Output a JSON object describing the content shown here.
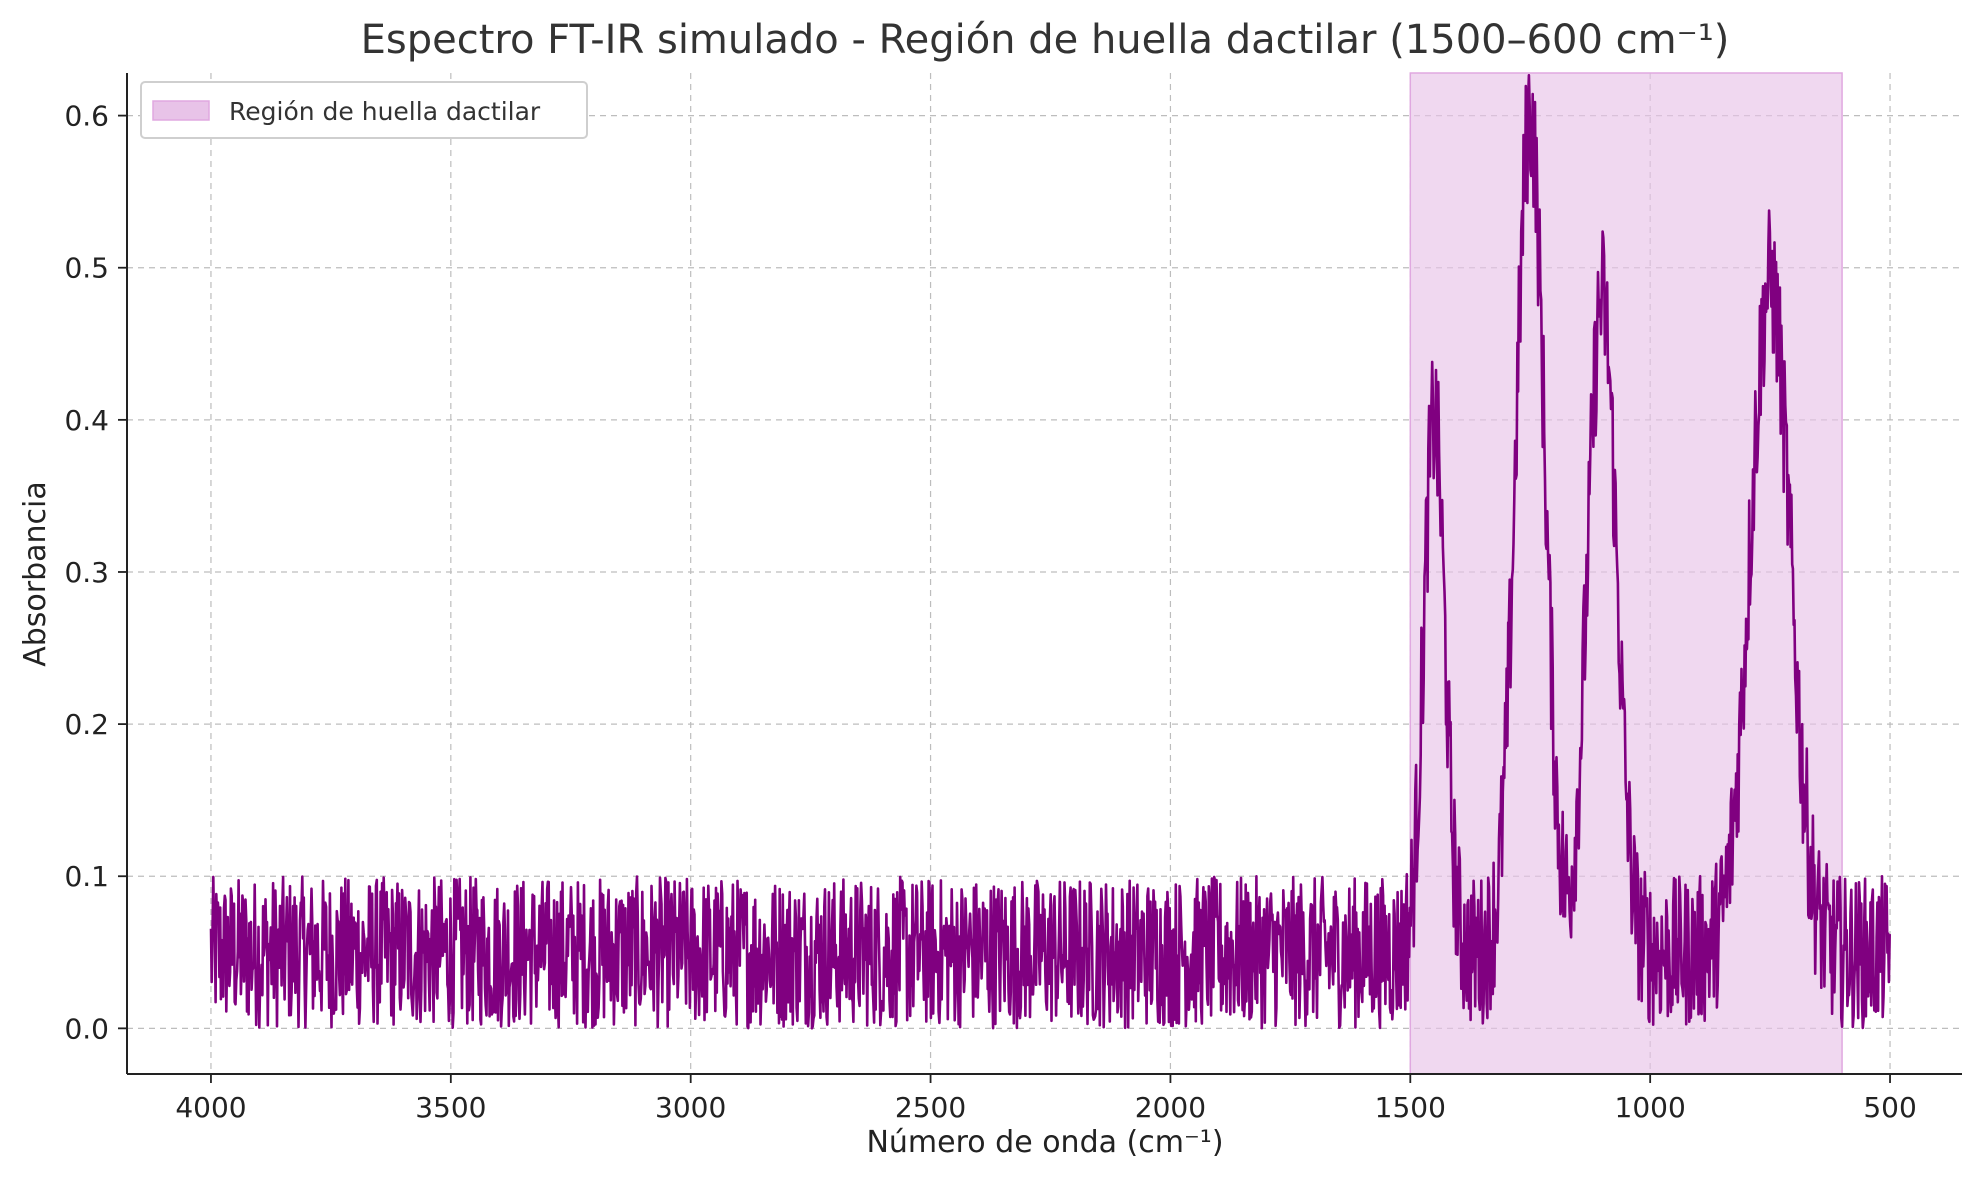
{
  "chart_data": {
    "type": "line",
    "title": "Espectro FT-IR simulado - Región de huella dactilar (1500–600 cm⁻¹)",
    "xlabel": "Número de onda (cm⁻¹)",
    "ylabel": "Absorbancia",
    "xlim": [
      4175,
      350
    ],
    "ylim": [
      -0.03,
      0.628
    ],
    "x_reversed": true,
    "x_ticks": [
      4000,
      3500,
      3000,
      2500,
      2000,
      1500,
      1000,
      500
    ],
    "x_tick_labels": [
      "4000",
      "3500",
      "3000",
      "2500",
      "2000",
      "1500",
      "1000",
      "500"
    ],
    "y_ticks": [
      0.0,
      0.1,
      0.2,
      0.3,
      0.4,
      0.5,
      0.6
    ],
    "y_tick_labels": [
      "0.0",
      "0.1",
      "0.2",
      "0.3",
      "0.4",
      "0.5",
      "0.6"
    ],
    "grid": true,
    "legend_position": "top-left",
    "highlight_region": {
      "label": "Región de huella dactilar",
      "x_range": [
        1500,
        600
      ],
      "color": "#e8c3e8"
    },
    "series": [
      {
        "color": "#800080",
        "baseline_range": [
          0.0,
          0.1
        ],
        "x_range": [
          4000,
          500
        ],
        "peaks": [
          {
            "x": 1450,
            "y": 0.4
          },
          {
            "x": 1250,
            "y": 0.6
          },
          {
            "x": 1100,
            "y": 0.48
          },
          {
            "x": 750,
            "y": 0.49
          }
        ]
      }
    ]
  }
}
